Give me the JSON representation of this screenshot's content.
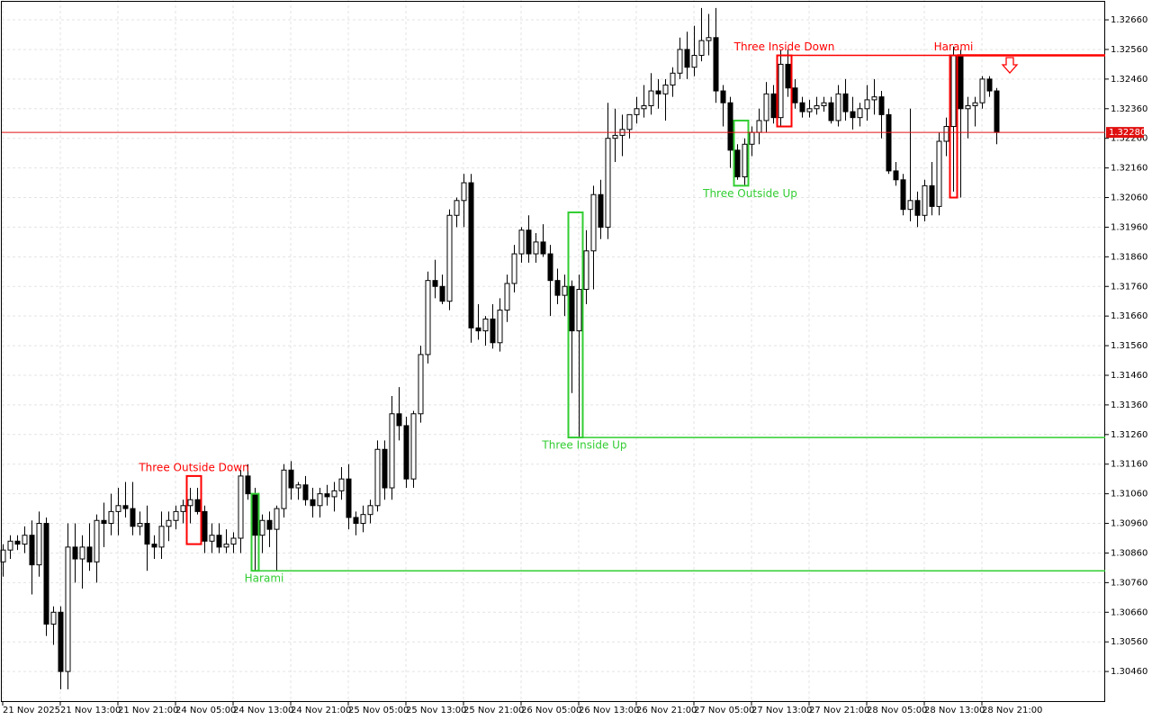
{
  "chart_data": {
    "type": "candlestick",
    "categories": [
      "21 Nov 2025",
      null,
      null,
      null,
      null,
      null,
      null,
      null,
      "21 Nov 13:00",
      null,
      null,
      null,
      null,
      null,
      null,
      null,
      "21 Nov 21:00",
      null,
      null,
      null,
      null,
      null,
      null,
      null,
      "24 Nov 05:00",
      null,
      null,
      null,
      null,
      null,
      null,
      null,
      "24 Nov 13:00",
      null,
      null,
      null,
      null,
      null,
      null,
      null,
      "24 Nov 21:00",
      null,
      null,
      null,
      null,
      null,
      null,
      null,
      "25 Nov 05:00",
      null,
      null,
      null,
      null,
      null,
      null,
      null,
      "25 Nov 13:00",
      null,
      null,
      null,
      null,
      null,
      null,
      null,
      "25 Nov 21:00",
      null,
      null,
      null,
      null,
      null,
      null,
      null,
      "26 Nov 05:00",
      null,
      null,
      null,
      null,
      null,
      null,
      null,
      "26 Nov 13:00",
      null,
      null,
      null,
      null,
      null,
      null,
      null,
      "26 Nov 21:00",
      null,
      null,
      null,
      null,
      null,
      null,
      null,
      "27 Nov 05:00",
      null,
      null,
      null,
      null,
      null,
      null,
      null,
      "27 Nov 13:00",
      null,
      null,
      null,
      null,
      null,
      null,
      null,
      "27 Nov 21:00",
      null,
      null,
      null,
      null,
      null,
      null,
      null,
      "28 Nov 05:00",
      null,
      null,
      null,
      null,
      null,
      null,
      null,
      "28 Nov 13:00",
      null,
      null,
      null,
      null,
      null,
      null,
      null,
      "28 Nov 21:00",
      null,
      null
    ],
    "open": [
      1.3083,
      1.3087,
      1.309,
      1.3089,
      1.3092,
      1.3082,
      1.3096,
      1.3062,
      1.3066,
      1.3046,
      1.3088,
      1.3084,
      1.3088,
      1.3083,
      1.3097,
      1.3096,
      1.31,
      1.3102,
      1.3101,
      1.3095,
      1.3096,
      1.3089,
      1.3088,
      1.3095,
      1.3097,
      1.31,
      1.3102,
      1.3104,
      1.31,
      1.309,
      1.3092,
      1.3088,
      1.3089,
      1.3091,
      1.3112,
      1.3106,
      1.3092,
      1.3097,
      1.3094,
      1.3101,
      1.3114,
      1.3108,
      1.3109,
      1.3104,
      1.3102,
      1.3106,
      1.3105,
      1.3107,
      1.3111,
      1.3098,
      1.3096,
      1.3099,
      1.3102,
      1.3121,
      1.3108,
      1.3133,
      1.3129,
      1.3111,
      1.3133,
      1.3153,
      1.3178,
      1.3176,
      1.3171,
      1.32,
      1.3205,
      1.3211,
      1.3162,
      1.3161,
      1.3165,
      1.3157,
      1.3168,
      1.3177,
      1.3187,
      1.3195,
      1.3187,
      1.3191,
      1.3187,
      1.3178,
      1.3173,
      1.3176,
      1.3161,
      1.3175,
      1.3188,
      1.3207,
      1.3196,
      1.3226,
      1.3227,
      1.3229,
      1.3234,
      1.3236,
      1.3237,
      1.3242,
      1.3241,
      1.3244,
      1.3248,
      1.3256,
      1.325,
      1.3254,
      1.3259,
      1.326,
      1.3242,
      1.3238,
      1.3222,
      1.3213,
      1.3224,
      1.3228,
      1.3232,
      1.3241,
      1.3233,
      1.3251,
      1.3243,
      1.3238,
      1.3235,
      1.3236,
      1.3237,
      1.3238,
      1.3232,
      1.3241,
      1.3235,
      1.3233,
      1.3236,
      1.3239,
      1.324,
      1.3234,
      1.3215,
      1.3212,
      1.3202,
      1.3205,
      1.32,
      1.321,
      1.3203,
      1.3225,
      1.323,
      1.3254,
      1.3236,
      1.3237,
      1.3238,
      1.3246,
      1.3242
    ],
    "high": [
      1.3089,
      1.3092,
      1.3092,
      1.3095,
      1.3097,
      1.31,
      1.3098,
      1.3068,
      1.3068,
      1.3096,
      1.3096,
      1.3092,
      1.3096,
      1.3099,
      1.3103,
      1.3106,
      1.3108,
      1.311,
      1.311,
      1.31,
      1.3102,
      1.3092,
      1.31,
      1.31,
      1.3102,
      1.3104,
      1.3108,
      1.3108,
      1.3102,
      1.3096,
      1.3096,
      1.3094,
      1.3093,
      1.3114,
      1.3116,
      1.3108,
      1.3099,
      1.31,
      1.3102,
      1.3116,
      1.3117,
      1.311,
      1.3112,
      1.3108,
      1.3108,
      1.3109,
      1.311,
      1.3115,
      1.3116,
      1.31,
      1.3102,
      1.3104,
      1.3124,
      1.3124,
      1.3139,
      1.3142,
      1.3132,
      1.3134,
      1.3156,
      1.3181,
      1.3185,
      1.318,
      1.3202,
      1.3206,
      1.3214,
      1.3214,
      1.317,
      1.3166,
      1.317,
      1.3172,
      1.318,
      1.319,
      1.3196,
      1.32,
      1.3194,
      1.3197,
      1.319,
      1.3182,
      1.318,
      1.3178,
      1.318,
      1.3195,
      1.321,
      1.3212,
      1.3238,
      1.3236,
      1.3234,
      1.3234,
      1.324,
      1.3244,
      1.3248,
      1.3246,
      1.3246,
      1.325,
      1.326,
      1.3262,
      1.3264,
      1.327,
      1.3268,
      1.327,
      1.3244,
      1.324,
      1.3224,
      1.3226,
      1.323,
      1.3236,
      1.3245,
      1.3244,
      1.3256,
      1.3256,
      1.3246,
      1.324,
      1.3239,
      1.324,
      1.324,
      1.324,
      1.3244,
      1.3246,
      1.324,
      1.3238,
      1.3244,
      1.3246,
      1.3242,
      1.3236,
      1.3218,
      1.3214,
      1.3236,
      1.3208,
      1.3212,
      1.3218,
      1.3228,
      1.3233,
      1.3257,
      1.3256,
      1.324,
      1.324,
      1.3247,
      1.3247,
      1.3243
    ],
    "low": [
      1.3078,
      1.3084,
      1.3087,
      1.3086,
      1.3072,
      1.3078,
      1.3058,
      1.3055,
      1.304,
      1.304,
      1.3076,
      1.3074,
      1.308,
      1.3076,
      1.3088,
      1.3092,
      1.3092,
      1.3098,
      1.3092,
      1.3092,
      1.308,
      1.3084,
      1.3084,
      1.309,
      1.3094,
      1.3096,
      1.3096,
      1.3099,
      1.3086,
      1.3086,
      1.3086,
      1.3086,
      1.3086,
      1.3086,
      1.3104,
      1.308,
      1.3086,
      1.3088,
      1.308,
      1.3098,
      1.3104,
      1.3104,
      1.3102,
      1.3098,
      1.3098,
      1.3102,
      1.31,
      1.3104,
      1.3094,
      1.3092,
      1.3093,
      1.3096,
      1.31,
      1.3104,
      1.3104,
      1.3124,
      1.3108,
      1.3108,
      1.313,
      1.315,
      1.3172,
      1.317,
      1.3168,
      1.3196,
      1.3196,
      1.3157,
      1.3158,
      1.3156,
      1.3155,
      1.3154,
      1.3164,
      1.3174,
      1.3184,
      1.3184,
      1.3184,
      1.3186,
      1.3166,
      1.317,
      1.3166,
      1.314,
      1.3125,
      1.317,
      1.3175,
      1.3192,
      1.3192,
      1.3218,
      1.322,
      1.3226,
      1.3231,
      1.3233,
      1.3234,
      1.3236,
      1.3232,
      1.324,
      1.3246,
      1.3246,
      1.3247,
      1.3252,
      1.3254,
      1.3238,
      1.323,
      1.3216,
      1.3212,
      1.321,
      1.322,
      1.3224,
      1.3228,
      1.3231,
      1.323,
      1.324,
      1.3236,
      1.3233,
      1.3233,
      1.3234,
      1.3235,
      1.3231,
      1.323,
      1.3232,
      1.3229,
      1.323,
      1.3232,
      1.3234,
      1.3226,
      1.3214,
      1.321,
      1.32,
      1.3198,
      1.3196,
      1.3198,
      1.32,
      1.32,
      1.322,
      1.3208,
      1.3206,
      1.3226,
      1.323,
      1.3236,
      1.324,
      1.3224
    ],
    "close": [
      1.3087,
      1.309,
      1.3089,
      1.3092,
      1.3082,
      1.3096,
      1.3062,
      1.3066,
      1.3046,
      1.3088,
      1.3084,
      1.3088,
      1.3083,
      1.3097,
      1.3096,
      1.31,
      1.3102,
      1.3101,
      1.3095,
      1.3096,
      1.3089,
      1.3088,
      1.3095,
      1.3097,
      1.31,
      1.3102,
      1.3104,
      1.31,
      1.309,
      1.3092,
      1.3088,
      1.3089,
      1.3091,
      1.3112,
      1.3106,
      1.3092,
      1.3097,
      1.3094,
      1.3101,
      1.3114,
      1.3108,
      1.3109,
      1.3104,
      1.3102,
      1.3106,
      1.3105,
      1.3107,
      1.3111,
      1.3098,
      1.3096,
      1.3099,
      1.3102,
      1.3121,
      1.3108,
      1.3133,
      1.3129,
      1.3111,
      1.3133,
      1.3153,
      1.3178,
      1.3176,
      1.3171,
      1.32,
      1.3205,
      1.3211,
      1.3162,
      1.3161,
      1.3165,
      1.3157,
      1.3168,
      1.3177,
      1.3187,
      1.3195,
      1.3187,
      1.3191,
      1.3187,
      1.3178,
      1.3173,
      1.3176,
      1.3161,
      1.3175,
      1.3188,
      1.3207,
      1.3196,
      1.3226,
      1.3227,
      1.3229,
      1.3234,
      1.3236,
      1.3237,
      1.3242,
      1.3241,
      1.3244,
      1.3248,
      1.3256,
      1.325,
      1.3254,
      1.3259,
      1.326,
      1.3242,
      1.3238,
      1.3222,
      1.3213,
      1.3224,
      1.3228,
      1.3232,
      1.3241,
      1.3233,
      1.3251,
      1.3243,
      1.3238,
      1.3235,
      1.3236,
      1.3237,
      1.3238,
      1.3232,
      1.3241,
      1.3235,
      1.3233,
      1.3236,
      1.3239,
      1.324,
      1.3234,
      1.3215,
      1.3212,
      1.3202,
      1.3205,
      1.32,
      1.321,
      1.3203,
      1.3225,
      1.323,
      1.3254,
      1.3236,
      1.3237,
      1.3238,
      1.3246,
      1.3242,
      1.3228
    ],
    "ylim": [
      1.30357,
      1.32727
    ],
    "yticks": [
      {
        "value": 1.3046,
        "label": "1.30460"
      },
      {
        "value": 1.3056,
        "label": "1.30560"
      },
      {
        "value": 1.3066,
        "label": "1.30660"
      },
      {
        "value": 1.3076,
        "label": "1.30760"
      },
      {
        "value": 1.3086,
        "label": "1.30860"
      },
      {
        "value": 1.3096,
        "label": "1.30960"
      },
      {
        "value": 1.3106,
        "label": "1.31060"
      },
      {
        "value": 1.3116,
        "label": "1.31160"
      },
      {
        "value": 1.3126,
        "label": "1.31260"
      },
      {
        "value": 1.3136,
        "label": "1.31360"
      },
      {
        "value": 1.3146,
        "label": "1.31460"
      },
      {
        "value": 1.3156,
        "label": "1.31560"
      },
      {
        "value": 1.3166,
        "label": "1.31660"
      },
      {
        "value": 1.3176,
        "label": "1.31760"
      },
      {
        "value": 1.3186,
        "label": "1.31860"
      },
      {
        "value": 1.3196,
        "label": "1.31960"
      },
      {
        "value": 1.3206,
        "label": "1.32060"
      },
      {
        "value": 1.3216,
        "label": "1.32160"
      },
      {
        "value": 1.3226,
        "label": "1.32260"
      },
      {
        "value": 1.3236,
        "label": "1.32360"
      },
      {
        "value": 1.3246,
        "label": "1.32460"
      },
      {
        "value": 1.3256,
        "label": "1.32560"
      },
      {
        "value": 1.3266,
        "label": "1.32660"
      }
    ],
    "grid": true,
    "last_price": {
      "value": 1.3228,
      "label": "1.32280",
      "color": "#e01010"
    },
    "annotations": [
      {
        "text": "Three Outside Down",
        "color": "#ff0000",
        "high": 1.3112,
        "low": 1.3089
      },
      {
        "text": "Harami",
        "color": "#32cd32",
        "high": 1.3106,
        "low": 1.308,
        "level": 1.308
      },
      {
        "text": "Three Inside Up",
        "color": "#32cd32",
        "high": 1.3201,
        "low": 1.3125,
        "level": 1.3125
      },
      {
        "text": "Three Outside Up",
        "color": "#32cd32",
        "high": 1.3232,
        "low": 1.321
      },
      {
        "text": "Three Inside Down",
        "color": "#ff0000",
        "high": 1.3254,
        "low": 1.323,
        "level": 1.3254
      },
      {
        "text": "Harami",
        "color": "#ff0000",
        "high": 1.3254,
        "low": 1.3206,
        "level": 1.3254
      }
    ]
  }
}
